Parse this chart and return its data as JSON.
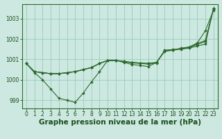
{
  "background_color": "#cce8e0",
  "grid_color": "#99ccbb",
  "line_color": "#2d6a2d",
  "xlabel": "Graphe pression niveau de la mer (hPa)",
  "ylim": [
    998.6,
    1003.7
  ],
  "xlim": [
    -0.5,
    23.5
  ],
  "yticks": [
    999,
    1000,
    1001,
    1002,
    1003
  ],
  "xticks": [
    0,
    1,
    2,
    3,
    4,
    5,
    6,
    7,
    8,
    9,
    10,
    11,
    12,
    13,
    14,
    15,
    16,
    17,
    18,
    19,
    20,
    21,
    22,
    23
  ],
  "series_dip": [
    1000.8,
    1000.35,
    1000.0,
    999.55,
    999.1,
    999.0,
    998.9,
    999.35,
    999.9,
    1000.4,
    1000.95,
    1000.95,
    1000.85,
    1000.75,
    1000.7,
    1000.65,
    1000.85,
    1001.4,
    1001.45,
    1001.55,
    1001.6,
    1001.8,
    1002.4,
    1003.4
  ],
  "series_flat1": [
    1000.8,
    1000.4,
    1000.35,
    1000.3,
    1000.3,
    1000.35,
    1000.4,
    1000.5,
    1000.6,
    1000.8,
    1000.95,
    1000.95,
    1000.9,
    1000.85,
    1000.82,
    1000.8,
    1000.85,
    1001.4,
    1001.45,
    1001.5,
    1001.55,
    1001.65,
    1001.75,
    1003.5
  ],
  "series_flat2": [
    1000.8,
    1000.4,
    1000.35,
    1000.3,
    1000.3,
    1000.35,
    1000.4,
    1000.5,
    1000.6,
    1000.8,
    1000.95,
    1000.95,
    1000.9,
    1000.85,
    1000.82,
    1000.8,
    1000.85,
    1001.42,
    1001.47,
    1001.52,
    1001.58,
    1001.72,
    1001.88,
    1003.45
  ],
  "series_flat3": [
    1000.8,
    1000.4,
    1000.35,
    1000.3,
    1000.3,
    1000.35,
    1000.4,
    1000.5,
    1000.6,
    1000.8,
    1000.95,
    1000.95,
    1000.88,
    1000.83,
    1000.8,
    1000.77,
    1000.82,
    1001.45,
    1001.48,
    1001.52,
    1001.6,
    1001.78,
    1001.92,
    1003.48
  ],
  "text_color": "#1a4d1a",
  "xlabel_fontsize": 7.5,
  "tick_fontsize": 5.5
}
